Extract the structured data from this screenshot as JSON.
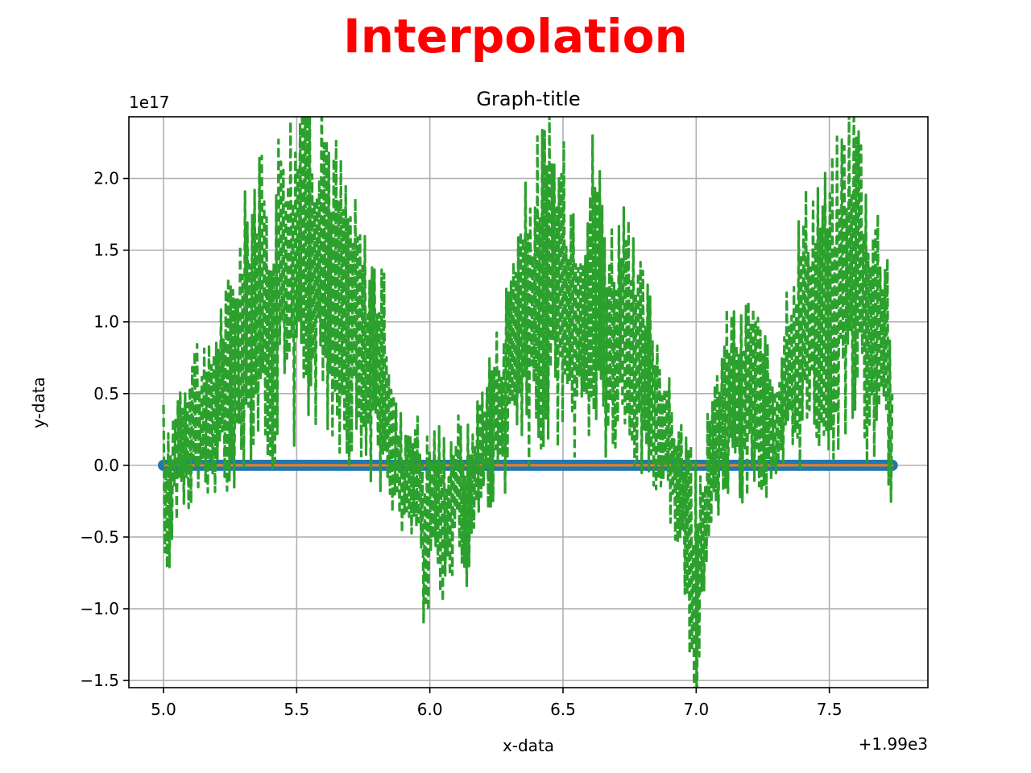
{
  "chart_data": {
    "type": "line",
    "suptitle": "Interpolation",
    "suptitle_color": "#ff0000",
    "title": "Graph-title",
    "xlabel": "x-data",
    "ylabel": "y-data",
    "x_offset_label": "+1.99e3",
    "y_scale_label": "1e17",
    "xlim": [
      1994.87,
      1997.87
    ],
    "ylim": [
      -1.55e+17,
      2.43e+17
    ],
    "xticks": [
      1995.0,
      1995.5,
      1996.0,
      1996.5,
      1997.0,
      1997.5
    ],
    "xtick_labels": [
      "5.0",
      "5.5",
      "6.0",
      "6.5",
      "7.0",
      "7.5"
    ],
    "yticks": [
      -1.5e+17,
      -1e+17,
      -5e+16,
      0,
      5e+16,
      1e+17,
      1.5e+17,
      2e+17
    ],
    "ytick_labels": [
      "−1.5",
      "−1.0",
      "−0.5",
      "0.0",
      "0.5",
      "1.0",
      "1.5",
      "2.0"
    ],
    "grid": true,
    "series": [
      {
        "style": "markers",
        "color": "#1f77b4",
        "x_range": [
          1995.0,
          1997.74
        ],
        "y": 0
      },
      {
        "style": "solid",
        "color": "#ff7f0e",
        "x_range": [
          1995.0,
          1997.74
        ],
        "y": 0
      },
      {
        "style": "dashed",
        "color": "#2ca02c",
        "x": [
          1995.0,
          1995.02,
          1995.04,
          1995.08,
          1995.12,
          1995.16,
          1995.2,
          1995.25,
          1995.3,
          1995.35,
          1995.4,
          1995.45,
          1995.5,
          1995.53,
          1995.56,
          1995.6,
          1995.65,
          1995.7,
          1995.75,
          1995.8,
          1995.83,
          1995.87,
          1995.9,
          1995.94,
          1995.98,
          1996.02,
          1996.06,
          1996.1,
          1996.14,
          1996.18,
          1996.22,
          1996.27,
          1996.32,
          1996.37,
          1996.42,
          1996.47,
          1996.52,
          1996.57,
          1996.62,
          1996.67,
          1996.72,
          1996.77,
          1996.82,
          1996.86,
          1996.9,
          1996.94,
          1996.97,
          1996.99,
          1997.02,
          1997.05,
          1997.09,
          1997.13,
          1997.17,
          1997.21,
          1997.25,
          1997.3,
          1997.35,
          1997.4,
          1997.45,
          1997.5,
          1997.55,
          1997.6,
          1997.64,
          1997.68,
          1997.72,
          1997.74
        ],
        "y": [
          0,
          -5e+16,
          1e+16,
          2e+16,
          3.5e+16,
          2e+16,
          4.5e+16,
          6e+16,
          9e+16,
          1.2e+17,
          9e+16,
          1.45e+17,
          1.3e+17,
          1.9e+17,
          1.4e+17,
          1.5e+17,
          1.2e+17,
          1e+17,
          8e+16,
          7e+16,
          5.5e+16,
          5000000000000000.0,
          -1.5e+16,
          2000000000000000.0,
          -4.5e+16,
          -2e+16,
          -4e+16,
          -1e+16,
          -3.5e+16,
          5000000000000000.0,
          2.5e+16,
          4e+16,
          9e+16,
          1e+17,
          1.3e+17,
          1.25e+17,
          1.1e+17,
          1e+17,
          1.3e+17,
          8.5e+16,
          9e+16,
          7e+16,
          5.5e+16,
          3.5e+16,
          1e+16,
          -2e+16,
          -3.5e+16,
          -1.1e+17,
          -6e+16,
          -1e+16,
          3e+16,
          5e+16,
          4e+16,
          6e+16,
          3e+16,
          2e+16,
          7e+16,
          9.5e+16,
          1.1e+17,
          1.05e+17,
          1.3e+17,
          1.5e+17,
          1.05e+17,
          9.5e+16,
          8e+16,
          5000000000000000.0
        ]
      }
    ]
  }
}
